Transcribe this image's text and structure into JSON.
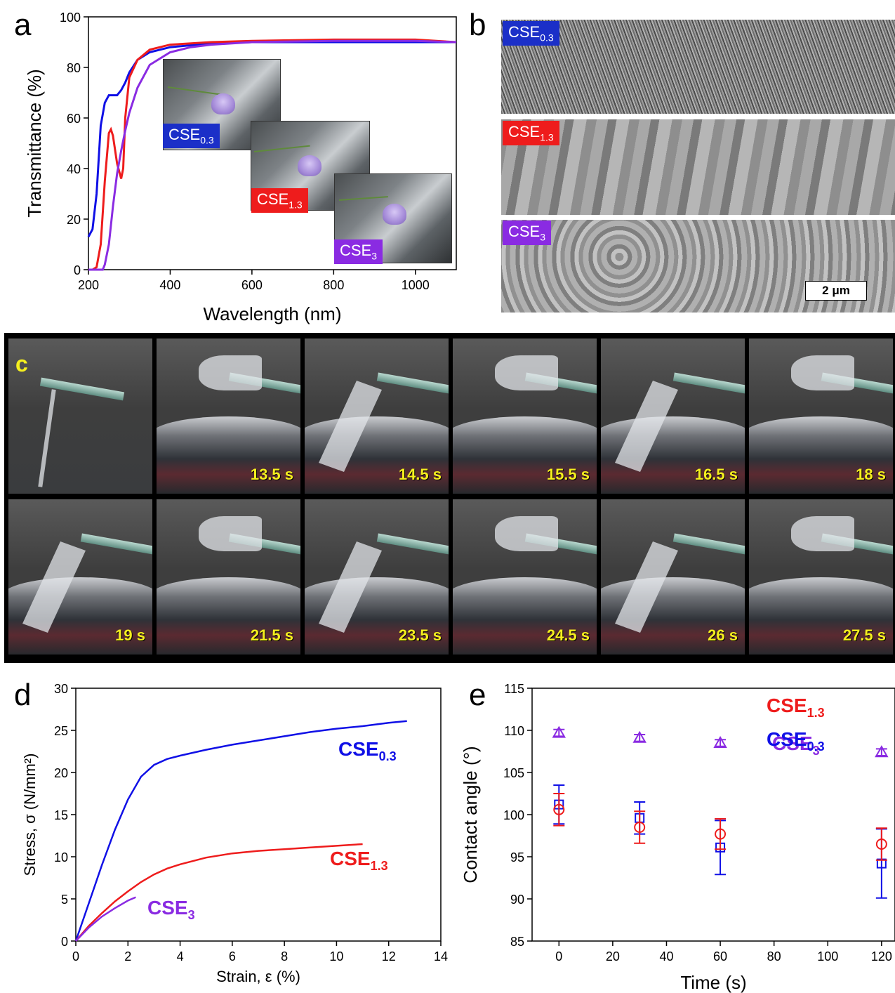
{
  "panels": {
    "a": "a",
    "b": "b",
    "c": "c",
    "d": "d",
    "e": "e"
  },
  "colors": {
    "cse03": "#1010e6",
    "cse13": "#ee1c1c",
    "cse3": "#8a2be2"
  },
  "series_labels": {
    "cse03": {
      "main": "CSE",
      "sub": "0.3"
    },
    "cse13": {
      "main": "CSE",
      "sub": "1.3"
    },
    "cse3": {
      "main": "CSE",
      "sub": "3"
    }
  },
  "panel_b": {
    "scale_bar": "2 μm"
  },
  "panel_c": {
    "times": [
      "13.5 s",
      "14.5 s",
      "15.5 s",
      "16.5 s",
      "18 s",
      "19 s",
      "21.5 s",
      "23.5 s",
      "24.5 s",
      "26 s",
      "27.5 s"
    ]
  },
  "chart_data": [
    {
      "panel": "a",
      "type": "line",
      "xlabel": "Wavelength (nm)",
      "ylabel": "Transmittance (%)",
      "xlim": [
        200,
        1100
      ],
      "ylim": [
        0,
        100
      ],
      "xticks": [
        200,
        400,
        600,
        800,
        1000
      ],
      "yticks": [
        0,
        20,
        40,
        60,
        80,
        100
      ],
      "series": [
        {
          "key": "cse03",
          "x": [
            200,
            210,
            220,
            230,
            240,
            250,
            260,
            270,
            280,
            290,
            300,
            320,
            350,
            400,
            500,
            600,
            800,
            1000,
            1100
          ],
          "y": [
            13,
            16,
            30,
            57,
            66,
            69,
            69,
            69,
            71,
            74,
            78,
            83,
            86,
            88,
            89.5,
            90,
            90,
            90,
            90
          ]
        },
        {
          "key": "cse13",
          "x": [
            200,
            210,
            220,
            230,
            240,
            250,
            255,
            260,
            270,
            280,
            285,
            290,
            300,
            320,
            350,
            400,
            500,
            600,
            800,
            1000,
            1100
          ],
          "y": [
            0,
            0,
            1,
            10,
            35,
            54,
            55.5,
            53,
            42,
            36,
            40,
            60,
            76,
            83,
            87,
            89,
            90,
            90.5,
            91,
            91,
            90
          ]
        },
        {
          "key": "cse3",
          "x": [
            200,
            230,
            235,
            240,
            250,
            260,
            270,
            280,
            290,
            300,
            320,
            350,
            400,
            450,
            500,
            600,
            800,
            1000,
            1100
          ],
          "y": [
            0,
            0,
            0,
            2,
            10,
            25,
            38,
            47,
            55,
            62,
            72,
            81,
            86,
            88,
            89,
            90,
            90.5,
            90.5,
            90
          ]
        }
      ]
    },
    {
      "panel": "d",
      "type": "line",
      "xlabel": "Strain, ε (%)",
      "ylabel": "Stress, σ (N/mm²)",
      "xlim": [
        0,
        14
      ],
      "ylim": [
        0,
        30
      ],
      "xticks": [
        0,
        2,
        4,
        6,
        8,
        10,
        12,
        14
      ],
      "yticks": [
        0,
        5,
        10,
        15,
        20,
        25,
        30
      ],
      "series": [
        {
          "key": "cse03",
          "x": [
            0,
            0.5,
            1,
            1.5,
            2,
            2.5,
            3,
            3.5,
            4,
            5,
            6,
            7,
            8,
            9,
            10,
            11,
            12,
            12.7
          ],
          "y": [
            0,
            4.5,
            9,
            13.2,
            16.8,
            19.5,
            20.9,
            21.6,
            22,
            22.7,
            23.3,
            23.8,
            24.3,
            24.8,
            25.2,
            25.5,
            25.9,
            26.1
          ]
        },
        {
          "key": "cse13",
          "x": [
            0,
            0.5,
            1,
            1.5,
            2,
            2.5,
            3,
            3.5,
            4,
            5,
            6,
            7,
            8,
            9,
            10,
            11
          ],
          "y": [
            0,
            1.8,
            3.3,
            4.7,
            5.9,
            7,
            7.9,
            8.6,
            9.1,
            9.9,
            10.4,
            10.7,
            10.9,
            11.1,
            11.3,
            11.5
          ]
        },
        {
          "key": "cse3",
          "x": [
            0,
            0.5,
            1,
            1.5,
            2,
            2.3
          ],
          "y": [
            0,
            1.6,
            2.9,
            3.9,
            4.8,
            5.2
          ]
        }
      ]
    },
    {
      "panel": "e",
      "type": "scatter",
      "xlabel": "Time (s)",
      "ylabel": "Contact angle (°)",
      "xlim": [
        -10,
        125
      ],
      "ylim": [
        85,
        115
      ],
      "xticks": [
        0,
        20,
        40,
        60,
        80,
        100,
        120
      ],
      "yticks": [
        85,
        90,
        95,
        100,
        105,
        110,
        115
      ],
      "series": [
        {
          "key": "cse03",
          "marker": "square",
          "x": [
            0,
            30,
            60,
            120
          ],
          "y": [
            101.2,
            99.6,
            96.1,
            94.2
          ],
          "err": [
            2.3,
            1.9,
            3.2,
            4.1
          ]
        },
        {
          "key": "cse13",
          "marker": "circle",
          "x": [
            0,
            30,
            60,
            120
          ],
          "y": [
            100.6,
            98.5,
            97.7,
            96.5
          ],
          "err": [
            1.9,
            1.9,
            1.8,
            1.9
          ]
        },
        {
          "key": "cse3",
          "marker": "triangle",
          "x": [
            0,
            30,
            60,
            120
          ],
          "y": [
            109.7,
            109.1,
            108.5,
            107.4
          ],
          "err": [
            0.4,
            0.4,
            0.4,
            0.4
          ]
        }
      ]
    }
  ]
}
